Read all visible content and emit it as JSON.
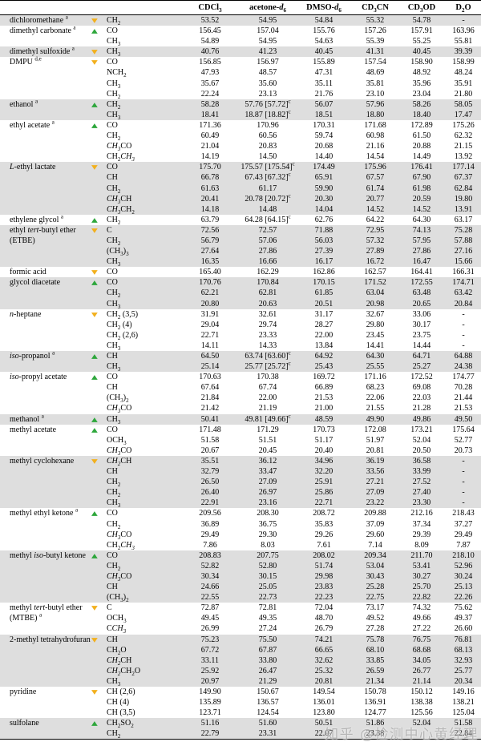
{
  "colors": {
    "row_shade": "#dedede",
    "border": "#000000",
    "background": "#ffffff"
  },
  "trend_icons": {
    "up": {
      "glyph": "▲",
      "color": "#2ea73c",
      "meaning": "up-triangle-green"
    },
    "down": {
      "glyph": "▼",
      "color": "#f2b01e",
      "meaning": "down-triangle-yellow"
    }
  },
  "watermark": {
    "text": "知乎 @检测中心黄经理"
  },
  "table": {
    "columns": [
      "CDCl~3~",
      "acetone-*d*~6~",
      "DMSO-*d*~6~",
      "CD~3~CN",
      "CD~3~OD",
      "D~2~O"
    ],
    "groups": [
      {
        "name": "dichloromethane ^a^",
        "trend": "down",
        "rows": [
          {
            "f": "CH~2~",
            "v": [
              "53.52",
              "54.95",
              "54.84",
              "55.32",
              "54.78",
              "-"
            ]
          }
        ]
      },
      {
        "name": "dimethyl carbonate ^a^",
        "trend": "up",
        "rows": [
          {
            "f": "CO",
            "v": [
              "156.45",
              "157.04",
              "155.76",
              "157.26",
              "157.91",
              "163.96"
            ]
          },
          {
            "f": "CH~3~",
            "v": [
              "54.89",
              "54.95",
              "54.63",
              "55.39",
              "55.25",
              "55.81"
            ]
          }
        ]
      },
      {
        "name": "dimethyl sulfoxide ^a^",
        "trend": "down",
        "rows": [
          {
            "f": "CH~3~",
            "v": [
              "40.76",
              "41.23",
              "40.45",
              "41.31",
              "40.45",
              "39.39"
            ]
          }
        ]
      },
      {
        "name": "DMPU ^d,e^",
        "trend": "down",
        "rows": [
          {
            "f": "CO",
            "v": [
              "156.85",
              "156.97",
              "155.89",
              "157.54",
              "158.90",
              "158.99"
            ]
          },
          {
            "f": "NCH~2~",
            "v": [
              "47.93",
              "48.57",
              "47.31",
              "48.69",
              "48.92",
              "48.24"
            ]
          },
          {
            "f": "CH~3~",
            "v": [
              "35.67",
              "35.60",
              "35.11",
              "35.81",
              "35.96",
              "35.91"
            ]
          },
          {
            "f": "CH~2~",
            "v": [
              "22.24",
              "23.13",
              "21.76",
              "23.10",
              "23.04",
              "21.80"
            ]
          }
        ]
      },
      {
        "name": "ethanol ^a^",
        "trend": "up",
        "rows": [
          {
            "f": "CH~2~",
            "v": [
              "58.28",
              "57.76 [57.72]^c^",
              "56.07",
              "57.96",
              "58.26",
              "58.05"
            ]
          },
          {
            "f": "CH~3~",
            "v": [
              "18.41",
              "18.87 [18.82]^c^",
              "18.51",
              "18.80",
              "18.40",
              "17.47"
            ]
          }
        ]
      },
      {
        "name": "ethyl acetate ^a^",
        "trend": "up",
        "rows": [
          {
            "f": "CO",
            "v": [
              "171.36",
              "170.96",
              "170.31",
              "171.68",
              "172.89",
              "175.26"
            ]
          },
          {
            "f": "CH~2~",
            "v": [
              "60.49",
              "60.56",
              "59.74",
              "60.98",
              "61.50",
              "62.32"
            ]
          },
          {
            "f": "*CH~3~*CO",
            "v": [
              "21.04",
              "20.83",
              "20.68",
              "21.16",
              "20.88",
              "21.15"
            ]
          },
          {
            "f": "CH~2~*CH~3~*",
            "v": [
              "14.19",
              "14.50",
              "14.40",
              "14.54",
              "14.49",
              "13.92"
            ]
          }
        ]
      },
      {
        "name": "*L*-ethyl lactate",
        "trend": "down",
        "rows": [
          {
            "f": "CO",
            "v": [
              "175.70",
              "175.57 [175.54]^c^",
              "174.49",
              "175.96",
              "176.41",
              "177.14"
            ]
          },
          {
            "f": "CH",
            "v": [
              "66.78",
              "67.43 [67.32]^c^",
              "65.91",
              "67.57",
              "67.90",
              "67.37"
            ]
          },
          {
            "f": "CH~2~",
            "v": [
              "61.63",
              "61.17",
              "59.90",
              "61.74",
              "61.98",
              "62.84"
            ]
          },
          {
            "f": "*CH~3~*CH",
            "v": [
              "20.41",
              "20.78 [20.72]^c^",
              "20.30",
              "20.77",
              "20.59",
              "19.80"
            ]
          },
          {
            "f": "*CH~3~*CH~2~",
            "v": [
              "14.18",
              "14.48",
              "14.04",
              "14.52",
              "14.52",
              "13.91"
            ]
          }
        ]
      },
      {
        "name": "ethylene glycol ^a^",
        "trend": "up",
        "rows": [
          {
            "f": "CH~2~",
            "v": [
              "63.79",
              "64.28 [64.15]^c^",
              "62.76",
              "64.22",
              "64.30",
              "63.17"
            ]
          }
        ]
      },
      {
        "name": "ethyl *tert*-butyl ether",
        "name2": "(ETBE)",
        "trend": "down",
        "rows": [
          {
            "f": "C",
            "v": [
              "72.56",
              "72.57",
              "71.88",
              "72.95",
              "74.13",
              "75.28"
            ]
          },
          {
            "f": "CH~2~",
            "v": [
              "56.79",
              "57.06",
              "56.03",
              "57.32",
              "57.95",
              "57.88"
            ]
          },
          {
            "f": "(CH~3~)~3~",
            "v": [
              "27.64",
              "27.86",
              "27.39",
              "27.89",
              "27.86",
              "27.16"
            ]
          },
          {
            "f": "CH~3~",
            "v": [
              "16.35",
              "16.66",
              "16.17",
              "16.72",
              "16.47",
              "15.66"
            ]
          }
        ]
      },
      {
        "name": "formic acid",
        "trend": "down",
        "rows": [
          {
            "f": "CO",
            "v": [
              "165.40",
              "162.29",
              "162.86",
              "162.57",
              "164.41",
              "166.31"
            ]
          }
        ]
      },
      {
        "name": "glycol diacetate",
        "trend": "up",
        "rows": [
          {
            "f": "CO",
            "v": [
              "170.76",
              "170.84",
              "170.15",
              "171.52",
              "172.55",
              "174.71"
            ]
          },
          {
            "f": "CH~2~",
            "v": [
              "62.21",
              "62.81",
              "61.85",
              "63.04",
              "63.48",
              "63.42"
            ]
          },
          {
            "f": "CH~3~",
            "v": [
              "20.80",
              "20.63",
              "20.51",
              "20.98",
              "20.65",
              "20.84"
            ]
          }
        ]
      },
      {
        "name": "*n*-heptane",
        "trend": "down",
        "rows": [
          {
            "f": "CH~2~ (3,5)",
            "v": [
              "31.91",
              "32.61",
              "31.17",
              "32.67",
              "33.06",
              "-"
            ]
          },
          {
            "f": "CH~2~ (4)",
            "v": [
              "29.04",
              "29.74",
              "28.27",
              "29.80",
              "30.17",
              "-"
            ]
          },
          {
            "f": "CH~2~ (2,6)",
            "v": [
              "22.71",
              "23.33",
              "22.00",
              "23.45",
              "23.75",
              "-"
            ]
          },
          {
            "f": "CH~3~",
            "v": [
              "14.11",
              "14.33",
              "13.84",
              "14.41",
              "14.44",
              "-"
            ]
          }
        ]
      },
      {
        "name": "*iso*-propanol ^a^",
        "trend": "up",
        "rows": [
          {
            "f": "CH",
            "v": [
              "64.50",
              "63.74 [63.60]^c^",
              "64.92",
              "64.30",
              "64.71",
              "64.88"
            ]
          },
          {
            "f": "CH~3~",
            "v": [
              "25.14",
              "25.77 [25.72]^c^",
              "25.43",
              "25.55",
              "25.27",
              "24.38"
            ]
          }
        ]
      },
      {
        "name": "*iso*-propyl acetate",
        "trend": "up",
        "rows": [
          {
            "f": "CO",
            "v": [
              "170.63",
              "170.38",
              "169.72",
              "171.16",
              "172.52",
              "174.77"
            ]
          },
          {
            "f": "CH",
            "v": [
              "67.64",
              "67.74",
              "66.89",
              "68.23",
              "69.08",
              "70.28"
            ]
          },
          {
            "f": "(CH~3~)~2~",
            "v": [
              "21.84",
              "22.00",
              "21.53",
              "22.06",
              "22.03",
              "21.44"
            ]
          },
          {
            "f": "*CH~3~*CO",
            "v": [
              "21.42",
              "21.19",
              "21.00",
              "21.55",
              "21.28",
              "21.53"
            ]
          }
        ]
      },
      {
        "name": "methanol ^a^",
        "trend": "up",
        "rows": [
          {
            "f": "CH~3~",
            "v": [
              "50.41",
              "49.81 [49.66]^c^",
              "48.59",
              "49.90",
              "49.86",
              "49.50"
            ]
          }
        ]
      },
      {
        "name": "methyl acetate",
        "trend": "up",
        "rows": [
          {
            "f": "CO",
            "v": [
              "171.48",
              "171.29",
              "170.73",
              "172.08",
              "173.21",
              "175.64"
            ]
          },
          {
            "f": "OCH~3~",
            "v": [
              "51.58",
              "51.51",
              "51.17",
              "51.97",
              "52.04",
              "52.77"
            ]
          },
          {
            "f": "*CH~3~*CO",
            "v": [
              "20.67",
              "20.45",
              "20.40",
              "20.81",
              "20.50",
              "20.73"
            ]
          }
        ]
      },
      {
        "name": "methyl cyclohexane",
        "trend": "down",
        "rows": [
          {
            "f": "*CH~2~*CH",
            "v": [
              "35.51",
              "36.12",
              "34.96",
              "36.19",
              "36.58",
              "-"
            ]
          },
          {
            "f": "CH",
            "v": [
              "32.79",
              "33.47",
              "32.20",
              "33.56",
              "33.99",
              "-"
            ]
          },
          {
            "f": "CH~2~",
            "v": [
              "26.50",
              "27.09",
              "25.91",
              "27.21",
              "27.52",
              "-"
            ]
          },
          {
            "f": "CH~2~",
            "v": [
              "26.40",
              "26.97",
              "25.86",
              "27.09",
              "27.40",
              "-"
            ]
          },
          {
            "f": "CH~3~",
            "v": [
              "22.91",
              "23.16",
              "22.71",
              "23.22",
              "23.30",
              "-"
            ]
          }
        ]
      },
      {
        "name": "methyl ethyl ketone ^a^",
        "trend": "up",
        "rows": [
          {
            "f": "CO",
            "v": [
              "209.56",
              "208.30",
              "208.72",
              "209.88",
              "212.16",
              "218.43"
            ]
          },
          {
            "f": "CH~2~",
            "v": [
              "36.89",
              "36.75",
              "35.83",
              "37.09",
              "37.34",
              "37.27"
            ]
          },
          {
            "f": "*CH~3~*CO",
            "v": [
              "29.49",
              "29.30",
              "29.26",
              "29.60",
              "29.39",
              "29.49"
            ]
          },
          {
            "f": "CH~2~*CH~3~*",
            "v": [
              "7.86",
              "8.03",
              "7.61",
              "7.14",
              "8.09",
              "7.87"
            ]
          }
        ]
      },
      {
        "name": "methyl *iso*-butyl ketone",
        "trend": "up",
        "rows": [
          {
            "f": "CO",
            "v": [
              "208.83",
              "207.75",
              "208.02",
              "209.34",
              "211.70",
              "218.10"
            ]
          },
          {
            "f": "CH~2~",
            "v": [
              "52.82",
              "52.80",
              "51.74",
              "53.04",
              "53.41",
              "52.96"
            ]
          },
          {
            "f": "*CH~3~*CO",
            "v": [
              "30.34",
              "30.15",
              "29.98",
              "30.43",
              "30.27",
              "30.24"
            ]
          },
          {
            "f": "CH",
            "v": [
              "24.66",
              "25.05",
              "23.83",
              "25.28",
              "25.70",
              "25.13"
            ]
          },
          {
            "f": "(CH~3~)~2~",
            "v": [
              "22.55",
              "22.73",
              "22.23",
              "22.75",
              "22.82",
              "22.26"
            ]
          }
        ]
      },
      {
        "name": "methyl *tert*-butyl ether",
        "name2": "(MTBE) ^a^",
        "trend": "down",
        "rows": [
          {
            "f": "C",
            "v": [
              "72.87",
              "72.81",
              "72.04",
              "73.17",
              "74.32",
              "75.62"
            ]
          },
          {
            "f": "OCH~3~",
            "v": [
              "49.45",
              "49.35",
              "48.70",
              "49.52",
              "49.66",
              "49.37"
            ]
          },
          {
            "f": "C*CH~3~*",
            "v": [
              "26.99",
              "27.24",
              "26.79",
              "27.28",
              "27.22",
              "26.60"
            ]
          }
        ]
      },
      {
        "name": "2-methyl tetrahydrofuran",
        "trend": "down",
        "rows": [
          {
            "f": "CH",
            "v": [
              "75.23",
              "75.50",
              "74.21",
              "75.78",
              "76.75",
              "76.81"
            ]
          },
          {
            "f": "CH~2~O",
            "v": [
              "67.72",
              "67.87",
              "66.65",
              "68.10",
              "68.68",
              "68.13"
            ]
          },
          {
            "f": "*CH~2~*CH",
            "v": [
              "33.11",
              "33.80",
              "32.62",
              "33.85",
              "34.05",
              "32.93"
            ]
          },
          {
            "f": "*CH~2~*CH~2~O",
            "v": [
              "25.92",
              "26.47",
              "25.32",
              "26.59",
              "26.77",
              "25.77"
            ]
          },
          {
            "f": "CH~3~",
            "v": [
              "20.97",
              "21.29",
              "20.81",
              "21.34",
              "21.14",
              "20.34"
            ]
          }
        ]
      },
      {
        "name": "pyridine",
        "trend": "down",
        "rows": [
          {
            "f": "CH (2,6)",
            "v": [
              "149.90",
              "150.67",
              "149.54",
              "150.78",
              "150.12",
              "149.16"
            ]
          },
          {
            "f": "CH (4)",
            "v": [
              "135.89",
              "136.57",
              "136.01",
              "136.91",
              "138.38",
              "138.21"
            ]
          },
          {
            "f": "CH (3,5)",
            "v": [
              "123.71",
              "124.54",
              "123.80",
              "124.77",
              "125.56",
              "125.04"
            ]
          }
        ]
      },
      {
        "name": "sulfolane",
        "trend": "up",
        "rows": [
          {
            "f": "CH~2~SO~2~",
            "v": [
              "51.16",
              "51.60",
              "50.51",
              "51.86",
              "52.04",
              "51.58"
            ]
          },
          {
            "f": "CH~2~",
            "v": [
              "22.79",
              "23.31",
              "22.07",
              "23.38",
              "",
              "22.84"
            ]
          }
        ]
      }
    ]
  }
}
